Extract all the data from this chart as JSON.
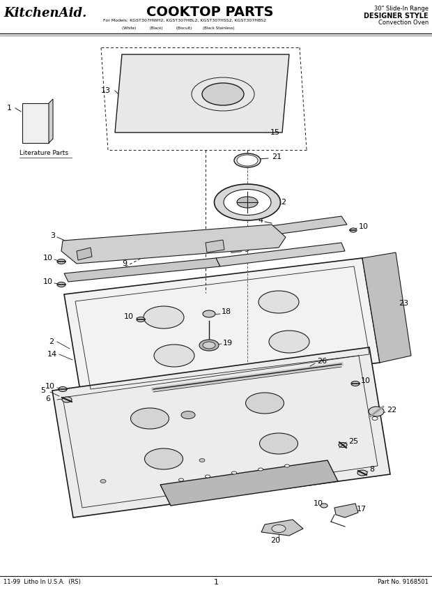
{
  "title": "COOKTOP PARTS",
  "brand": "KitchenAid.",
  "subtitle_line1": "For Models: KGST307HWH2, KGST307HBL2, KGST307HSS2, KGST307HBS2",
  "subtitle_line2": "(White)           (Black)           (Biscuit)         (Black Stainless)",
  "top_right_line1": "30\" Slide-In Range",
  "top_right_line2": "DESIGNER STYLE",
  "top_right_line3": "Convection Oven",
  "footer_left": "11-99  Litho In U.S.A.  (RS)",
  "footer_center": "1",
  "footer_right": "Part No. 9168501",
  "bg_color": "#ffffff",
  "lc": "#1a1a1a"
}
